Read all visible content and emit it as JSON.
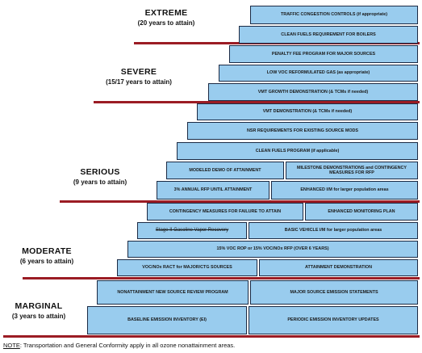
{
  "tiers": [
    {
      "name": "EXTREME",
      "years": "(20 years to attain)"
    },
    {
      "name": "SEVERE",
      "years": "(15/17 years to attain)"
    },
    {
      "name": "SERIOUS",
      "years": "(9 years to attain)"
    },
    {
      "name": "MODERATE",
      "years": "(6 years to attain)"
    },
    {
      "name": "MARGINAL",
      "years": "(3 years to attain)"
    }
  ],
  "requirements": {
    "traffic_congestion": "TRAFFIC CONGESTION CONTROLS (if appropriate)",
    "clean_fuels_boilers": "CLEAN FUELS REQUIREMENT FOR BOILERS",
    "penalty_fee": "PENALTY FEE PROGRAM FOR MAJOR SOURCES",
    "low_voc_gas": "LOW VOC REFORMULATED GAS (as appropriate)",
    "vmt_growth": "VMT GROWTH DEMONSTRATION (& TCMs if needed)",
    "vmt_demo": "VMT DEMONSTRATION (& TCMs if needed)",
    "nsr_existing": "NSR REQUIREMENTS FOR EXISTING SOURCE MODS",
    "clean_fuels_program": "CLEAN FUELS PROGRAM (if applicable)",
    "modeled_demo": "MODELED DEMO OF ATTAINMENT",
    "milestone_demos": "MILESTONE DEMONSTRATIONS and CONTINGENCY MEASURES FOR RFP",
    "annual_rfp": "3% ANNUAL RFP UNTIL ATTAINMENT",
    "enhanced_im": "ENHANCED I/M for larger population areas",
    "contingency_failure": "CONTINGENCY MEASURES FOR FAILURE TO ATTAIN",
    "enhanced_monitoring": "ENHANCED MONITORING PLAN",
    "stage_ii": "Stage II Gasoline Vapor Recovery",
    "basic_im": "BASIC VEHICLE I/M for larger population areas",
    "voc_rop": "15% VOC ROP or 15% VOC/NOx RFP (OVER 6 YEARS)",
    "voc_nox_ract": "VOC/NOx RACT for MAJOR/CTG SOURCES",
    "attainment_demo": "ATTAINMENT DEMONSTRATION",
    "nsr_program": "NONATTAINMENT NEW SOURCE REVIEW PROGRAM",
    "major_source_statements": "MAJOR SOURCE EMISSION STATEMENTS",
    "baseline_inventory": "BASELINE EMISSION INVENTORY (EI)",
    "periodic_inventory": "PERIODIC EMISSION INVENTORY UPDATES"
  },
  "note": {
    "label": "NOTE",
    "text": ": Transportation and General Conformity apply in all ozone nonattainment areas."
  },
  "colors": {
    "box_fill": "#99ccee",
    "box_border": "#1b2a44",
    "rule": "#9b1c24"
  }
}
